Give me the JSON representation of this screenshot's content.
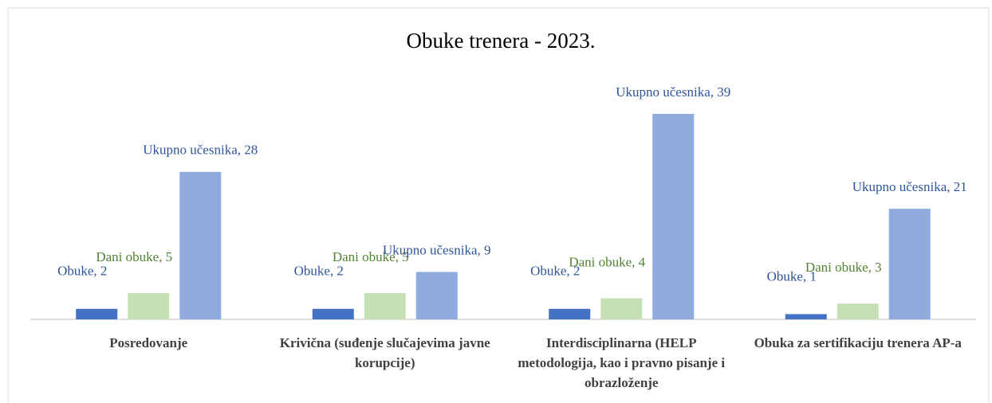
{
  "chart_data": {
    "type": "bar",
    "title": "Obuke trenera - 2023.",
    "categories": [
      "Posredovanje",
      "Krivična (suđenje slučajevima javne korupcije)",
      "Interdisciplinarna (HELP metodologija, kao i pravno pisanje i obrazloženje",
      "Obuka za sertifikaciju trenera AP-a"
    ],
    "series": [
      {
        "name": "Obuke",
        "color": "#4472c4",
        "values": [
          2,
          2,
          2,
          1
        ],
        "value_labels": [
          "Obuke, 2",
          "Obuke, 2",
          "Obuke, 2",
          "Obuke, 1"
        ]
      },
      {
        "name": "Dani obuke",
        "color": "#c5e0b4",
        "values": [
          5,
          5,
          4,
          3
        ],
        "value_labels": [
          "Dani obuke, 5",
          "Dani obuke, 5",
          "Dani obuke, 4",
          "Dani obuke, 3"
        ]
      },
      {
        "name": "Ukupno učesnika",
        "color": "#8faadc",
        "values": [
          28,
          9,
          39,
          21
        ],
        "value_labels": [
          "Ukupno učesnika, 28",
          "Ukupno učesnika, 9",
          "Ukupno učesnika, 39",
          "Ukupno učesnika, 21"
        ]
      }
    ]
  }
}
